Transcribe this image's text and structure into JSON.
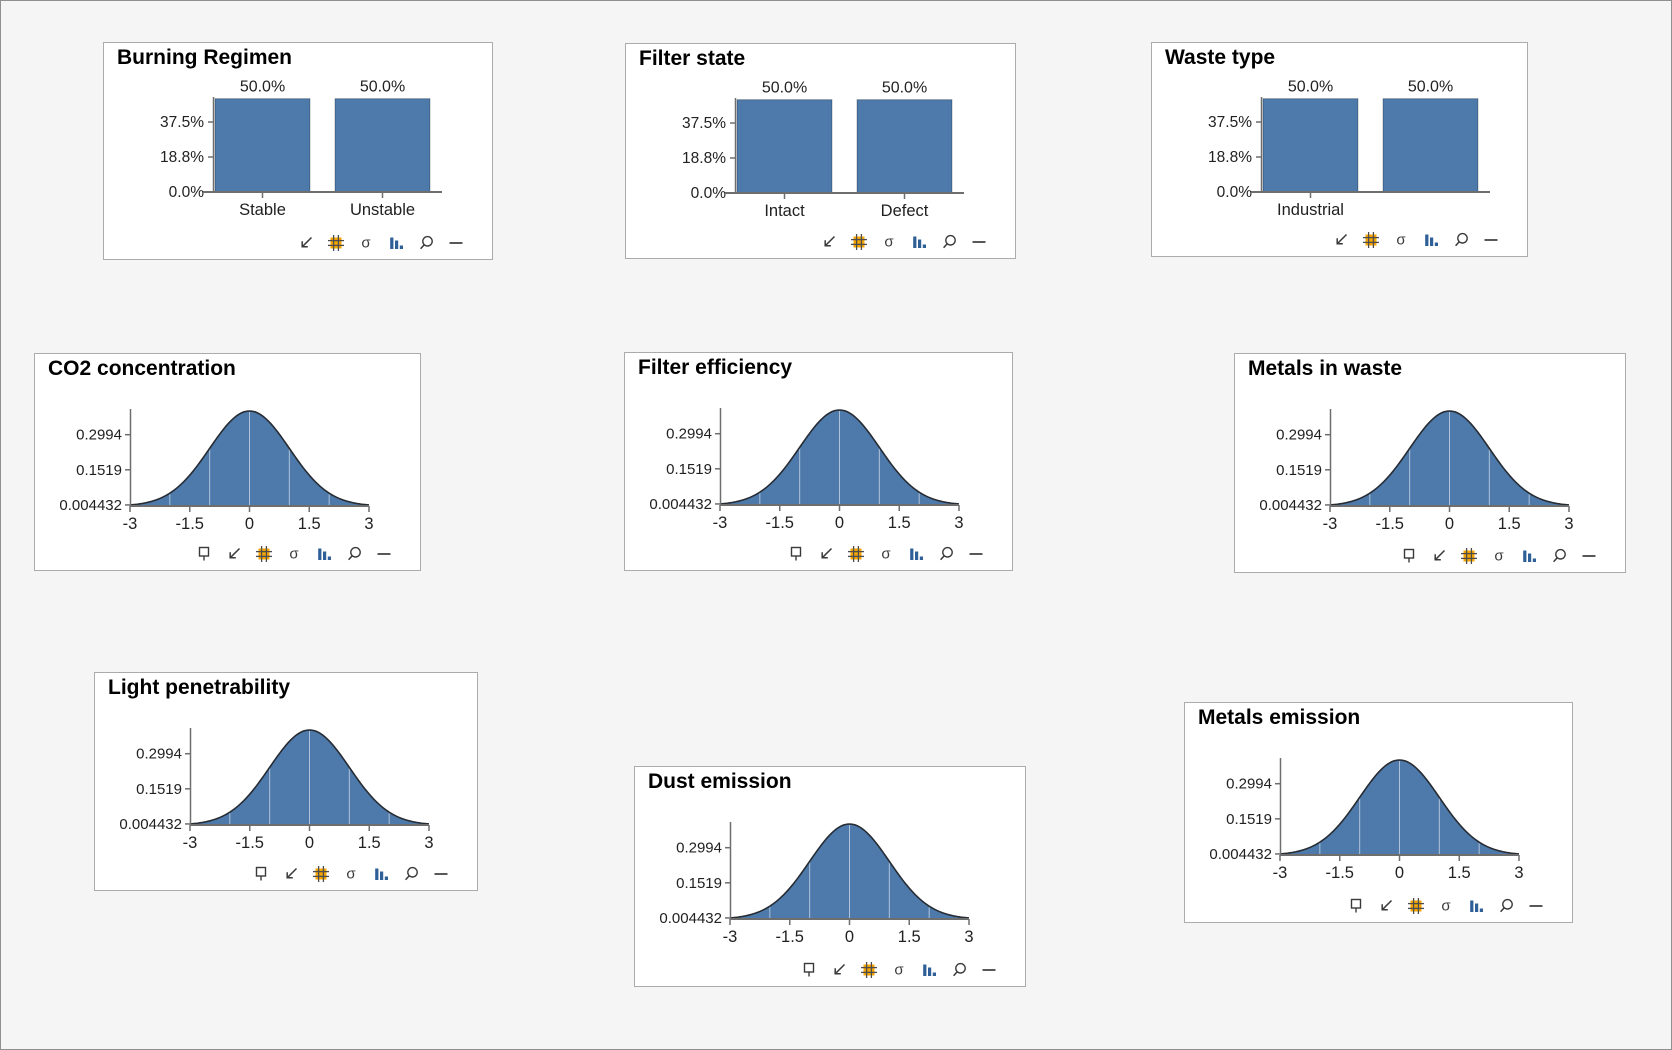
{
  "page": {
    "background": "#f5f5f6",
    "border_color": "#8f8f8f"
  },
  "colors": {
    "panel_bg": "#ffffff",
    "panel_border": "#ababab",
    "title": "#000000",
    "text": "#212121",
    "axis": "#6e6e6e",
    "bar_fill": "#4d7aab",
    "bar_stroke": "rgba(0,0,0,0.28)",
    "curve_fill": "#4d7aab",
    "curve_stroke": "#272c33",
    "curve_gridline": "rgba(255,255,255,0.55)",
    "icon": "#3a3a3a",
    "icon_orange": "#f7a600",
    "icon_grid_line": "#4d4d4d",
    "icon_bar_blue": "#2e5f96"
  },
  "panels": [
    {
      "id": "burning-regimen",
      "title": "Burning Regimen",
      "type": "bar",
      "chart_data": {
        "type": "bar",
        "categories": [
          "Stable",
          "Unstable"
        ],
        "values": [
          50.0,
          50.0
        ],
        "value_labels": [
          "50.0%",
          "50.0%"
        ],
        "y_tick_labels": [
          "0.0%",
          "18.8%",
          "37.5%"
        ],
        "y_tick_values": [
          0,
          18.75,
          37.5
        ],
        "ylim": [
          0,
          50
        ]
      },
      "toolbar": [
        "arrow-sw",
        "grid",
        "sigma",
        "bar-chart",
        "magnifier",
        "dash"
      ]
    },
    {
      "id": "filter-state",
      "title": "Filter state",
      "type": "bar",
      "chart_data": {
        "type": "bar",
        "categories": [
          "Intact",
          "Defect"
        ],
        "values": [
          50.0,
          50.0
        ],
        "value_labels": [
          "50.0%",
          "50.0%"
        ],
        "y_tick_labels": [
          "0.0%",
          "18.8%",
          "37.5%"
        ],
        "y_tick_values": [
          0,
          18.75,
          37.5
        ],
        "ylim": [
          0,
          50
        ]
      },
      "toolbar": [
        "arrow-sw",
        "grid",
        "sigma",
        "bar-chart",
        "magnifier",
        "dash"
      ]
    },
    {
      "id": "waste-type",
      "title": "Waste type",
      "type": "bar",
      "chart_data": {
        "type": "bar",
        "categories": [
          "Industrial",
          ""
        ],
        "values": [
          50.0,
          50.0
        ],
        "value_labels": [
          "50.0%",
          "50.0%"
        ],
        "y_tick_labels": [
          "0.0%",
          "18.8%",
          "37.5%"
        ],
        "y_tick_values": [
          0,
          18.75,
          37.5
        ],
        "ylim": [
          0,
          50
        ]
      },
      "toolbar": [
        "arrow-sw",
        "grid",
        "sigma",
        "bar-chart",
        "magnifier",
        "dash"
      ]
    },
    {
      "id": "co2-concentration",
      "title": "CO2 concentration",
      "type": "density",
      "chart_data": {
        "type": "area",
        "distribution": "standard_normal",
        "x_tick_labels": [
          "-3",
          "-1.5",
          "0",
          "1.5",
          "3"
        ],
        "x_tick_values": [
          -3,
          -1.5,
          0,
          1.5,
          3
        ],
        "y_tick_labels": [
          "0.004432",
          "0.1519",
          "0.2994"
        ],
        "y_tick_values": [
          0.004432,
          0.1519,
          0.2994
        ],
        "xlim": [
          -3,
          3
        ],
        "peak_value": 0.3989,
        "gridlines_x": [
          -2,
          -1,
          0,
          1,
          2
        ]
      },
      "toolbar": [
        "placard",
        "arrow-sw",
        "grid",
        "sigma",
        "bar-chart",
        "magnifier",
        "dash"
      ]
    },
    {
      "id": "filter-efficiency",
      "title": "Filter efficiency",
      "type": "density",
      "chart_data": {
        "type": "area",
        "distribution": "standard_normal",
        "x_tick_labels": [
          "-3",
          "-1.5",
          "0",
          "1.5",
          "3"
        ],
        "x_tick_values": [
          -3,
          -1.5,
          0,
          1.5,
          3
        ],
        "y_tick_labels": [
          "0.004432",
          "0.1519",
          "0.2994"
        ],
        "y_tick_values": [
          0.004432,
          0.1519,
          0.2994
        ],
        "xlim": [
          -3,
          3
        ],
        "peak_value": 0.3989,
        "gridlines_x": [
          -2,
          -1,
          0,
          1,
          2
        ]
      },
      "toolbar": [
        "placard",
        "arrow-sw",
        "grid",
        "sigma",
        "bar-chart",
        "magnifier",
        "dash"
      ]
    },
    {
      "id": "metals-in-waste",
      "title": "Metals in waste",
      "type": "density",
      "chart_data": {
        "type": "area",
        "distribution": "standard_normal",
        "x_tick_labels": [
          "-3",
          "-1.5",
          "0",
          "1.5",
          "3"
        ],
        "x_tick_values": [
          -3,
          -1.5,
          0,
          1.5,
          3
        ],
        "y_tick_labels": [
          "0.004432",
          "0.1519",
          "0.2994"
        ],
        "y_tick_values": [
          0.004432,
          0.1519,
          0.2994
        ],
        "xlim": [
          -3,
          3
        ],
        "peak_value": 0.3989,
        "gridlines_x": [
          -2,
          -1,
          0,
          1,
          2
        ]
      },
      "toolbar": [
        "placard",
        "arrow-sw",
        "grid",
        "sigma",
        "bar-chart",
        "magnifier",
        "dash"
      ]
    },
    {
      "id": "light-penetrability",
      "title": "Light penetrability",
      "type": "density",
      "chart_data": {
        "type": "area",
        "distribution": "standard_normal",
        "x_tick_labels": [
          "-3",
          "-1.5",
          "0",
          "1.5",
          "3"
        ],
        "x_tick_values": [
          -3,
          -1.5,
          0,
          1.5,
          3
        ],
        "y_tick_labels": [
          "0.004432",
          "0.1519",
          "0.2994"
        ],
        "y_tick_values": [
          0.004432,
          0.1519,
          0.2994
        ],
        "xlim": [
          -3,
          3
        ],
        "peak_value": 0.3989,
        "gridlines_x": [
          -2,
          -1,
          0,
          1,
          2
        ]
      },
      "toolbar": [
        "placard",
        "arrow-sw",
        "grid",
        "sigma",
        "bar-chart",
        "magnifier",
        "dash"
      ]
    },
    {
      "id": "dust-emission",
      "title": "Dust emission",
      "type": "density",
      "chart_data": {
        "type": "area",
        "distribution": "standard_normal",
        "x_tick_labels": [
          "-3",
          "-1.5",
          "0",
          "1.5",
          "3"
        ],
        "x_tick_values": [
          -3,
          -1.5,
          0,
          1.5,
          3
        ],
        "y_tick_labels": [
          "0.004432",
          "0.1519",
          "0.2994"
        ],
        "y_tick_values": [
          0.004432,
          0.1519,
          0.2994
        ],
        "xlim": [
          -3,
          3
        ],
        "peak_value": 0.3989,
        "gridlines_x": [
          -2,
          -1,
          0,
          1,
          2
        ]
      },
      "toolbar": [
        "placard",
        "arrow-sw",
        "grid",
        "sigma",
        "bar-chart",
        "magnifier",
        "dash"
      ]
    },
    {
      "id": "metals-emission",
      "title": "Metals emission",
      "type": "density",
      "chart_data": {
        "type": "area",
        "distribution": "standard_normal",
        "x_tick_labels": [
          "-3",
          "-1.5",
          "0",
          "1.5",
          "3"
        ],
        "x_tick_values": [
          -3,
          -1.5,
          0,
          1.5,
          3
        ],
        "y_tick_labels": [
          "0.004432",
          "0.1519",
          "0.2994"
        ],
        "y_tick_values": [
          0.004432,
          0.1519,
          0.2994
        ],
        "xlim": [
          -3,
          3
        ],
        "peak_value": 0.3989,
        "gridlines_x": [
          -2,
          -1,
          0,
          1,
          2
        ]
      },
      "toolbar": [
        "placard",
        "arrow-sw",
        "grid",
        "sigma",
        "bar-chart",
        "magnifier",
        "dash"
      ]
    }
  ]
}
